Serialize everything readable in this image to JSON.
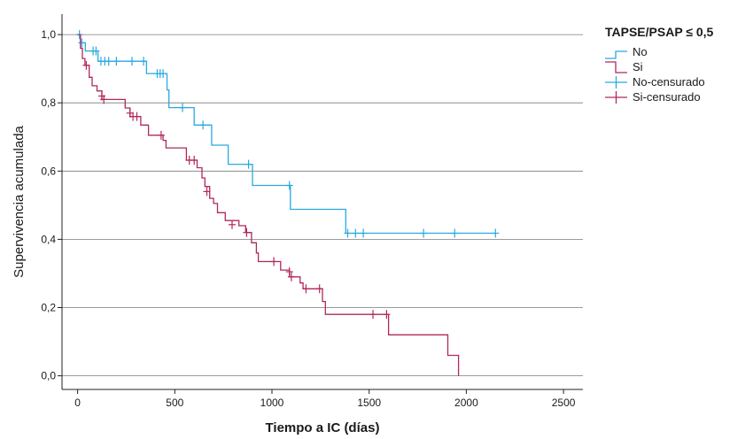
{
  "chart_data": {
    "type": "line",
    "subtype": "kaplan-meier",
    "xlabel": "Tiempo a IC (días)",
    "ylabel": "Supervivencia acumulada",
    "xlim": [
      -80,
      2600
    ],
    "ylim": [
      -0.04,
      1.06
    ],
    "xticks": [
      0,
      500,
      1000,
      1500,
      2000,
      2500
    ],
    "xtick_labels": [
      "0",
      "500",
      "1000",
      "1500",
      "2000",
      "2500"
    ],
    "yticks": [
      0.0,
      0.2,
      0.4,
      0.6,
      0.8,
      1.0
    ],
    "ytick_labels": [
      "0,0",
      "0,2",
      "0,4",
      "0,6",
      "0,8",
      "1,0"
    ],
    "grid": "horizontal",
    "legend": {
      "title": "TAPSE/PSAP ≤ 0,5",
      "placement": "right",
      "entries": [
        "No",
        "Si",
        "No-censurado",
        "Si-censurado"
      ]
    },
    "series": [
      {
        "name": "No",
        "color": "#29a9df",
        "steps": [
          [
            0,
            1.0
          ],
          [
            15,
            0.976
          ],
          [
            40,
            0.952
          ],
          [
            105,
            0.922
          ],
          [
            355,
            0.886
          ],
          [
            460,
            0.838
          ],
          [
            470,
            0.786
          ],
          [
            600,
            0.735
          ],
          [
            690,
            0.676
          ],
          [
            775,
            0.62
          ],
          [
            900,
            0.558
          ],
          [
            1095,
            0.488
          ],
          [
            1380,
            0.418
          ],
          [
            2150,
            0.418
          ]
        ],
        "censored": [
          [
            10,
            1.0
          ],
          [
            22,
            0.976
          ],
          [
            80,
            0.952
          ],
          [
            95,
            0.952
          ],
          [
            120,
            0.922
          ],
          [
            140,
            0.922
          ],
          [
            160,
            0.922
          ],
          [
            200,
            0.922
          ],
          [
            280,
            0.922
          ],
          [
            340,
            0.922
          ],
          [
            410,
            0.886
          ],
          [
            425,
            0.886
          ],
          [
            440,
            0.886
          ],
          [
            540,
            0.786
          ],
          [
            645,
            0.735
          ],
          [
            880,
            0.62
          ],
          [
            1090,
            0.558
          ],
          [
            1390,
            0.418
          ],
          [
            1430,
            0.418
          ],
          [
            1470,
            0.418
          ],
          [
            1780,
            0.418
          ],
          [
            1940,
            0.418
          ],
          [
            2150,
            0.418
          ]
        ]
      },
      {
        "name": "Si",
        "color": "#b0285f",
        "steps": [
          [
            0,
            1.0
          ],
          [
            15,
            0.96
          ],
          [
            25,
            0.93
          ],
          [
            38,
            0.91
          ],
          [
            60,
            0.875
          ],
          [
            75,
            0.85
          ],
          [
            100,
            0.835
          ],
          [
            125,
            0.81
          ],
          [
            245,
            0.785
          ],
          [
            270,
            0.76
          ],
          [
            325,
            0.735
          ],
          [
            365,
            0.705
          ],
          [
            440,
            0.69
          ],
          [
            455,
            0.668
          ],
          [
            560,
            0.632
          ],
          [
            615,
            0.61
          ],
          [
            640,
            0.58
          ],
          [
            655,
            0.555
          ],
          [
            680,
            0.52
          ],
          [
            700,
            0.505
          ],
          [
            720,
            0.478
          ],
          [
            760,
            0.455
          ],
          [
            830,
            0.44
          ],
          [
            865,
            0.42
          ],
          [
            895,
            0.39
          ],
          [
            920,
            0.36
          ],
          [
            930,
            0.335
          ],
          [
            1045,
            0.31
          ],
          [
            1090,
            0.29
          ],
          [
            1145,
            0.272
          ],
          [
            1160,
            0.255
          ],
          [
            1260,
            0.218
          ],
          [
            1275,
            0.18
          ],
          [
            1600,
            0.12
          ],
          [
            1905,
            0.06
          ],
          [
            1960,
            0.0
          ]
        ],
        "censored": [
          [
            45,
            0.91
          ],
          [
            125,
            0.82
          ],
          [
            135,
            0.81
          ],
          [
            270,
            0.77
          ],
          [
            285,
            0.76
          ],
          [
            305,
            0.76
          ],
          [
            430,
            0.705
          ],
          [
            575,
            0.632
          ],
          [
            600,
            0.632
          ],
          [
            665,
            0.54
          ],
          [
            795,
            0.443
          ],
          [
            870,
            0.42
          ],
          [
            1010,
            0.335
          ],
          [
            1090,
            0.305
          ],
          [
            1100,
            0.29
          ],
          [
            1175,
            0.255
          ],
          [
            1245,
            0.255
          ],
          [
            1520,
            0.18
          ],
          [
            1590,
            0.18
          ]
        ]
      }
    ]
  }
}
